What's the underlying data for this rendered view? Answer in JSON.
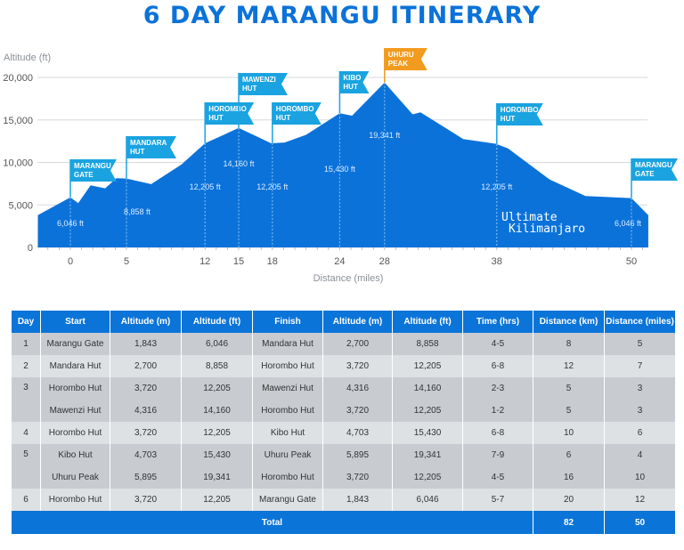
{
  "title": "6 DAY MARANGU ITINERARY",
  "colors": {
    "area": "#0b72d9",
    "flag": "#1aa3e0",
    "summit_flag": "#f29b1e",
    "header": "#0b74d8",
    "row_dark": "#c8ccd1",
    "row_light": "#dde1e4"
  },
  "logo_text": [
    "Ultimate",
    "Kilimanjaro"
  ],
  "chart_data": {
    "type": "area",
    "ylabel": "Altitude (ft)",
    "xlabel": "Distance (miles)",
    "ylim": [
      0,
      20000
    ],
    "yticks": [
      0,
      5000,
      10000,
      15000,
      20000
    ],
    "ytick_labels": [
      "0",
      "5,000",
      "10,000",
      "15,000",
      "20,000"
    ],
    "xticks": [
      0,
      5,
      12,
      15,
      18,
      24,
      28,
      38,
      50
    ],
    "xtick_labels": [
      "0",
      "5",
      "12",
      "15",
      "18",
      "24",
      "28",
      "38",
      "50"
    ],
    "grid": true,
    "profile": [
      [
        -2.9,
        3800
      ],
      [
        0,
        5900
      ],
      [
        0.7,
        5200
      ],
      [
        1.8,
        7300
      ],
      [
        3.1,
        6950
      ],
      [
        4.1,
        8150
      ],
      [
        5,
        8100
      ],
      [
        7.2,
        7450
      ],
      [
        9.9,
        9750
      ],
      [
        12,
        12250
      ],
      [
        15,
        14050
      ],
      [
        17.9,
        12250
      ],
      [
        19.1,
        12350
      ],
      [
        21,
        13250
      ],
      [
        24,
        15780
      ],
      [
        25.1,
        15500
      ],
      [
        28,
        19400
      ],
      [
        30.5,
        15650
      ],
      [
        31.2,
        15900
      ],
      [
        35,
        12750
      ],
      [
        37.9,
        12200
      ],
      [
        39,
        11650
      ],
      [
        42.7,
        8000
      ],
      [
        45.9,
        6050
      ],
      [
        50,
        5800
      ],
      [
        51.5,
        3800
      ]
    ],
    "markers": [
      {
        "mile": 0,
        "name": [
          "MARANGU",
          "GATE"
        ],
        "altitude_label": "6,046 ft",
        "summit": false
      },
      {
        "mile": 5,
        "name": [
          "MANDARA",
          "HUT"
        ],
        "altitude_label": "8,858 ft",
        "summit": false
      },
      {
        "mile": 12,
        "name": [
          "HOROMBO",
          "HUT"
        ],
        "altitude_label": "12,205 ft",
        "summit": false
      },
      {
        "mile": 15,
        "name": [
          "MAWENZI",
          "HUT"
        ],
        "altitude_label": "14,160 ft",
        "summit": false
      },
      {
        "mile": 18,
        "name": [
          "HOROMBO",
          "HUT"
        ],
        "altitude_label": "12,205 ft",
        "summit": false
      },
      {
        "mile": 24,
        "name": [
          "KIBO",
          "HUT"
        ],
        "altitude_label": "15,430 ft",
        "summit": false
      },
      {
        "mile": 28,
        "name": [
          "UHURU",
          "PEAK"
        ],
        "altitude_label": "19,341 ft",
        "summit": true
      },
      {
        "mile": 38,
        "name": [
          "HOROMBO",
          "HUT"
        ],
        "altitude_label": "12,205 ft",
        "summit": false
      },
      {
        "mile": 50,
        "name": [
          "MARANGU",
          "GATE"
        ],
        "altitude_label": "6,046 ft",
        "summit": false
      }
    ]
  },
  "table": {
    "headers": [
      "Day",
      "Start",
      "Altitude (m)",
      "Altitude (ft)",
      "Finish",
      "Altitude (m)",
      "Altitude (ft)",
      "Time (hrs)",
      "Distance (km)",
      "Distance (miles)"
    ],
    "days": [
      {
        "day": "1",
        "rows": [
          [
            "Marangu Gate",
            "1,843",
            "6,046",
            "Mandara Hut",
            "2,700",
            "8,858",
            "4-5",
            "8",
            "5"
          ]
        ]
      },
      {
        "day": "2",
        "rows": [
          [
            "Mandara Hut",
            "2,700",
            "8,858",
            "Horombo Hut",
            "3,720",
            "12,205",
            "6-8",
            "12",
            "7"
          ]
        ]
      },
      {
        "day": "3",
        "rows": [
          [
            "Horombo Hut",
            "3,720",
            "12,205",
            "Mawenzi Hut",
            "4,316",
            "14,160",
            "2-3",
            "5",
            "3"
          ],
          [
            "Mawenzi Hut",
            "4,316",
            "14,160",
            "Horombo Hut",
            "3,720",
            "12,205",
            "1-2",
            "5",
            "3"
          ]
        ]
      },
      {
        "day": "4",
        "rows": [
          [
            "Horombo Hut",
            "3,720",
            "12,205",
            "Kibo Hut",
            "4,703",
            "15,430",
            "6-8",
            "10",
            "6"
          ]
        ]
      },
      {
        "day": "5",
        "rows": [
          [
            "Kibo Hut",
            "4,703",
            "15,430",
            "Uhuru Peak",
            "5,895",
            "19,341",
            "7-9",
            "6",
            "4"
          ],
          [
            "Uhuru Peak",
            "5,895",
            "19,341",
            "Horombo Hut",
            "3,720",
            "12,205",
            "4-5",
            "16",
            "10"
          ]
        ]
      },
      {
        "day": "6",
        "rows": [
          [
            "Horombo Hut",
            "3,720",
            "12,205",
            "Marangu Gate",
            "1,843",
            "6,046",
            "5-7",
            "20",
            "12"
          ]
        ]
      }
    ],
    "total": {
      "label": "Total",
      "km": "82",
      "miles": "50"
    }
  }
}
